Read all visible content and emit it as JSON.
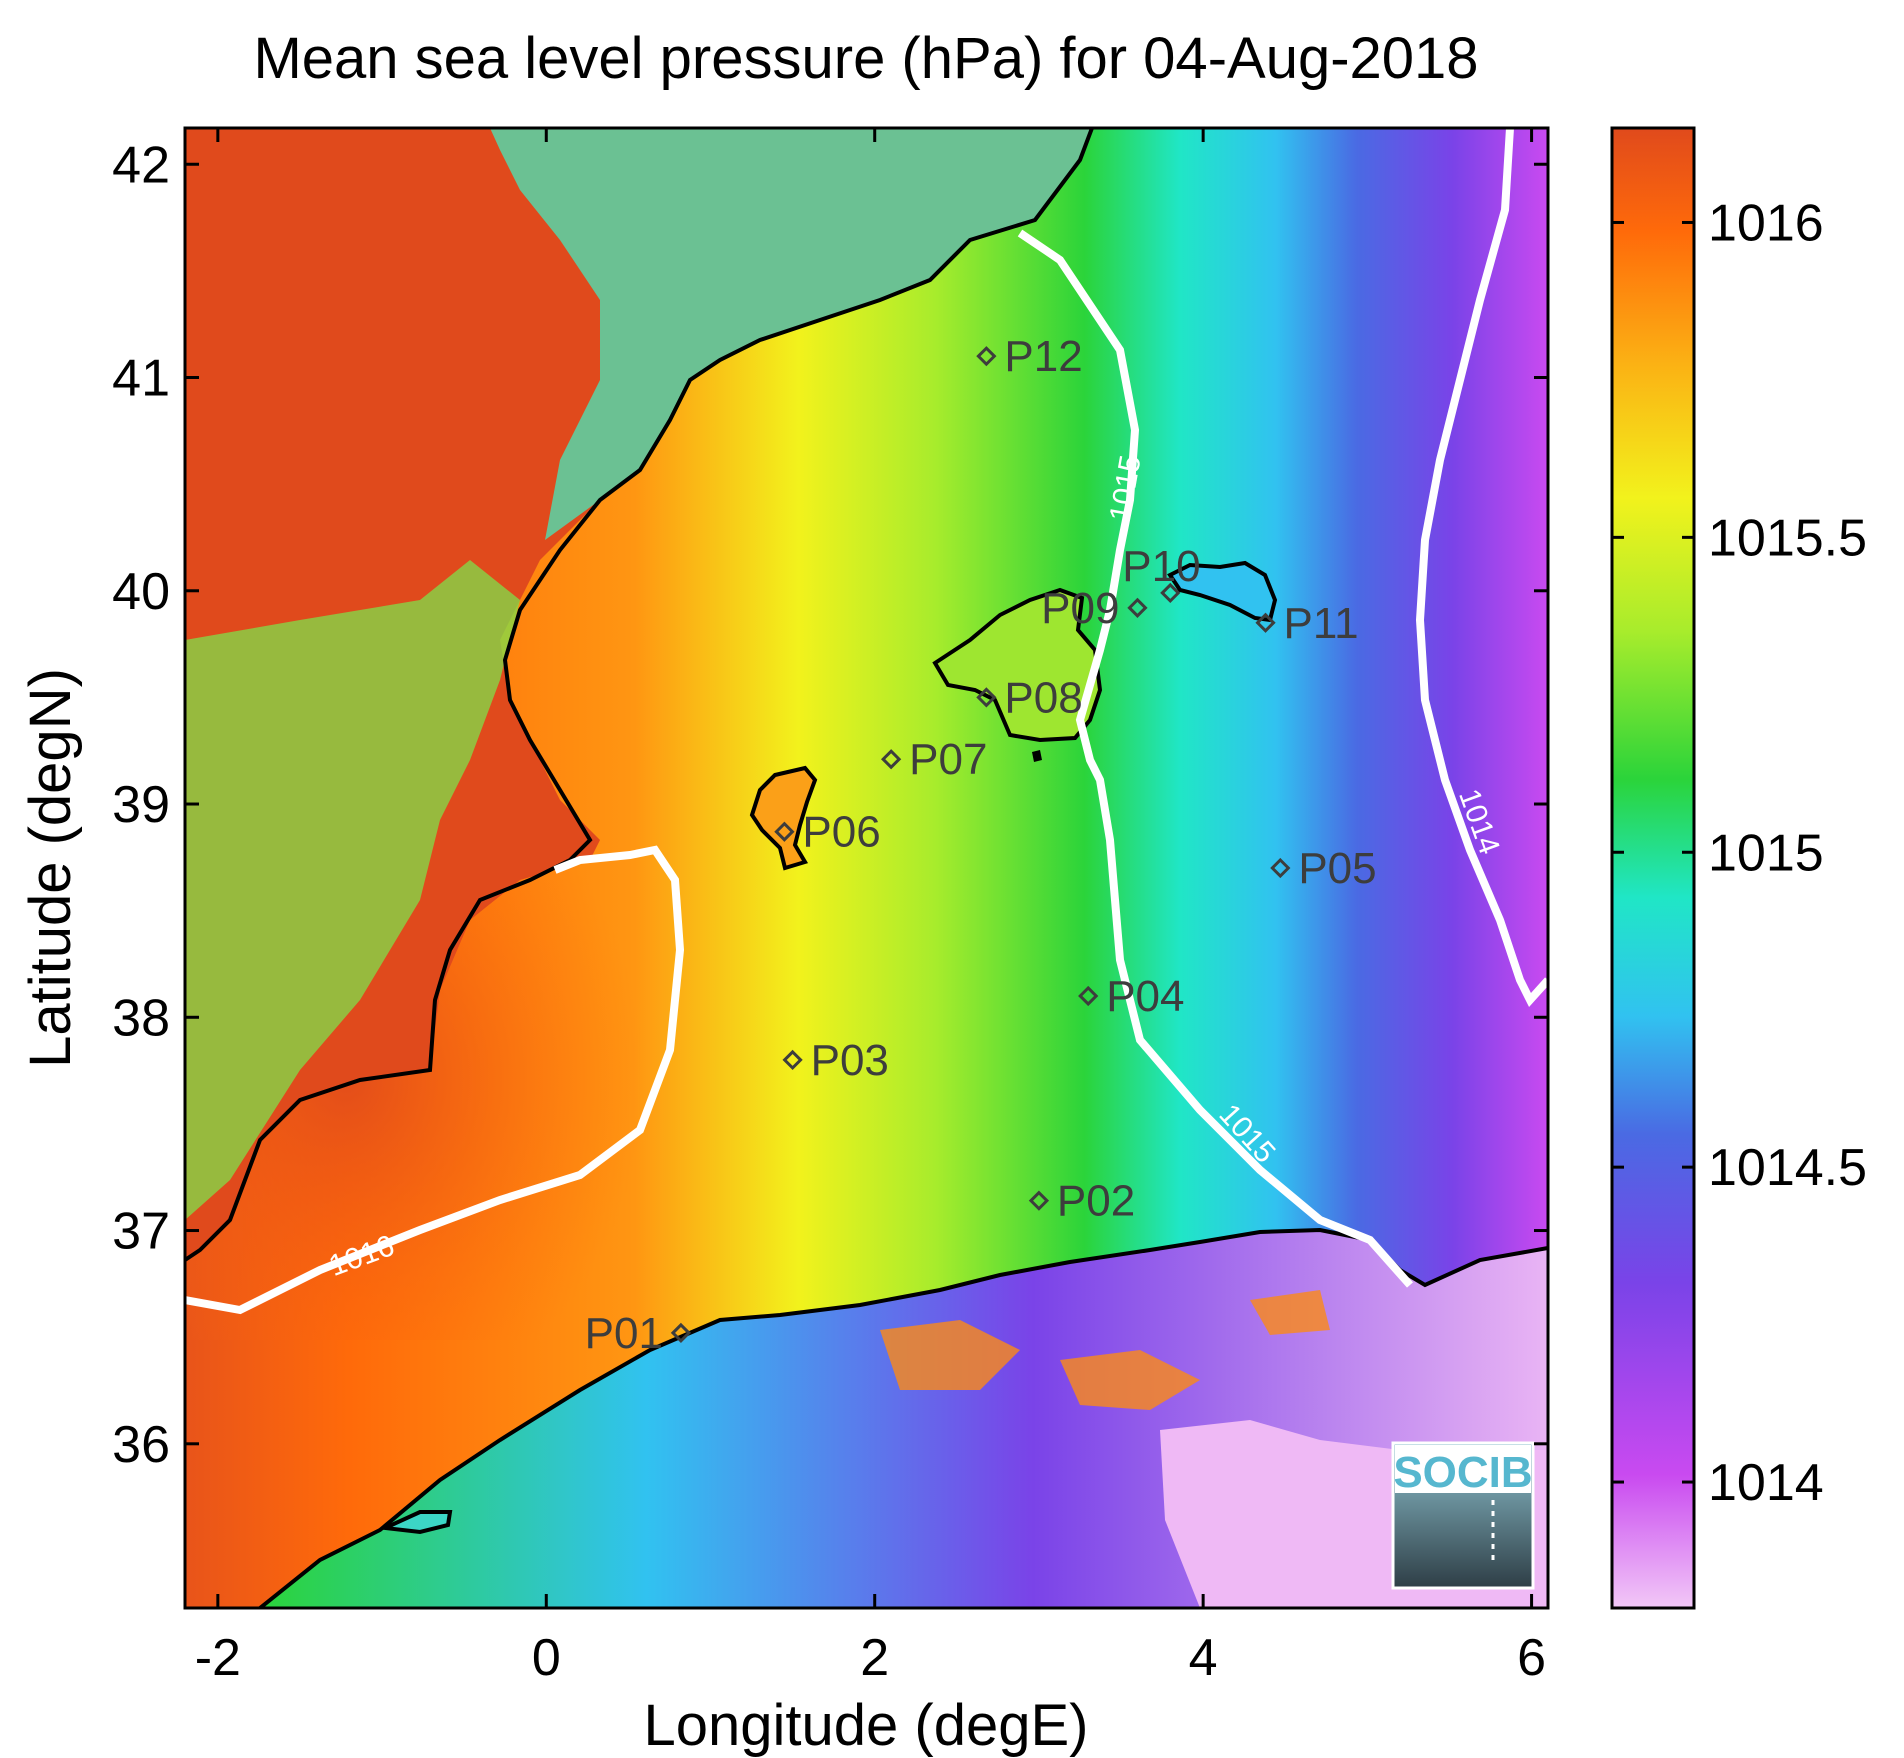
{
  "title": "Mean sea level pressure (hPa) for 04-Aug-2018",
  "xlabel": "Longitude (degE)",
  "ylabel": "Latitude (degN)",
  "map": {
    "xlim": [
      -2.2,
      6.1
    ],
    "ylim": [
      35.23,
      42.17
    ],
    "xticks": [
      -2,
      0,
      2,
      4,
      6
    ],
    "yticks": [
      36,
      37,
      38,
      39,
      40,
      41,
      42
    ],
    "xtick_labels": [
      "-2",
      "0",
      "2",
      "4",
      "6"
    ],
    "ytick_labels": [
      "36",
      "37",
      "38",
      "39",
      "40",
      "41",
      "42"
    ],
    "colormap": [
      "#f2c8f7",
      "#c94af0",
      "#7a43e8",
      "#4a6ae3",
      "#31c2f0",
      "#20e6c6",
      "#2bd43a",
      "#a8ec2c",
      "#f2f21c",
      "#fbb214",
      "#ff6a0a",
      "#e04a1c"
    ],
    "land_mask_color": "#e04a1c",
    "coastline_color": "#000000",
    "contour_color": "#ffffff"
  },
  "colorbar": {
    "range": [
      1013.8,
      1016.15
    ],
    "ticks": [
      1014,
      1014.5,
      1015,
      1015.5,
      1016
    ],
    "tick_labels": [
      "1014",
      "1014.5",
      "1015",
      "1015.5",
      "1016"
    ]
  },
  "contours": [
    {
      "level": 1016,
      "label": "1016"
    },
    {
      "level": 1015,
      "label": "1015"
    },
    {
      "level": 1015,
      "label": "1015"
    },
    {
      "level": 1014,
      "label": "1014"
    }
  ],
  "stations": [
    {
      "name": "P01",
      "lon": 0.82,
      "lat": 36.52
    },
    {
      "name": "P02",
      "lon": 3.0,
      "lat": 37.14
    },
    {
      "name": "P03",
      "lon": 1.5,
      "lat": 37.8
    },
    {
      "name": "P04",
      "lon": 3.3,
      "lat": 38.1
    },
    {
      "name": "P05",
      "lon": 4.47,
      "lat": 38.7
    },
    {
      "name": "P06",
      "lon": 1.45,
      "lat": 38.87
    },
    {
      "name": "P07",
      "lon": 2.1,
      "lat": 39.21
    },
    {
      "name": "P08",
      "lon": 2.68,
      "lat": 39.5
    },
    {
      "name": "P09",
      "lon": 3.6,
      "lat": 39.92
    },
    {
      "name": "P10",
      "lon": 3.8,
      "lat": 39.99
    },
    {
      "name": "P11",
      "lon": 4.38,
      "lat": 39.85
    },
    {
      "name": "P12",
      "lon": 2.68,
      "lat": 41.1
    }
  ],
  "logo": {
    "text": "SOCIB"
  }
}
